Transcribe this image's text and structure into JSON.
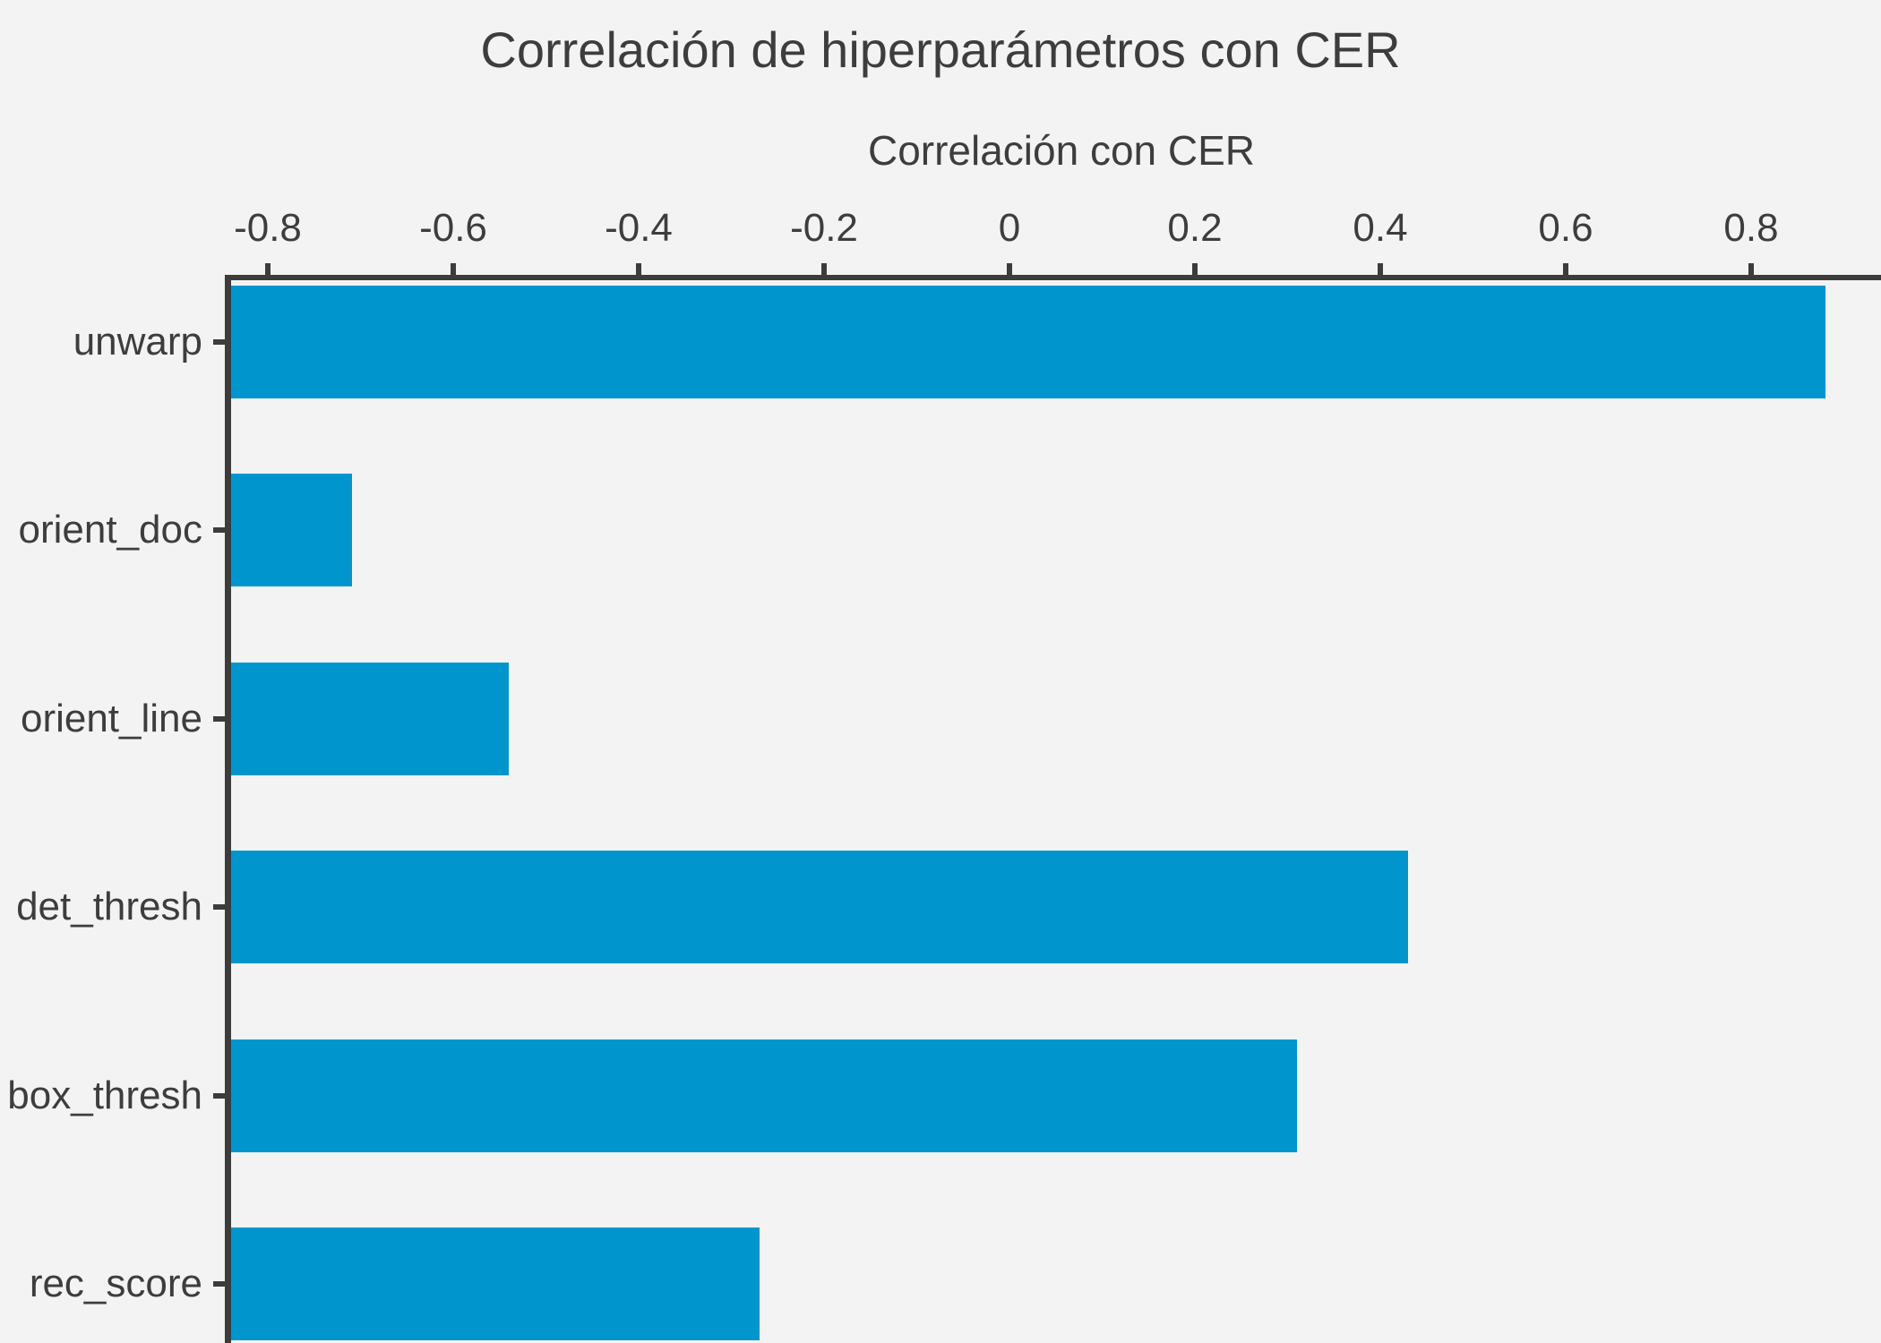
{
  "chart_data": {
    "type": "bar",
    "orientation": "horizontal",
    "title": "Correlación de hiperparámetros con CER",
    "xlabel": "Correlación con CER",
    "ylabel": "",
    "categories": [
      "unwarp",
      "orient_doc",
      "orient_line",
      "det_thresh",
      "box_thresh",
      "rec_score"
    ],
    "values": [
      0.88,
      -0.71,
      -0.54,
      0.43,
      0.31,
      -0.27
    ],
    "x_ticks": [
      -0.8,
      -0.6,
      -0.4,
      -0.2,
      0,
      0.2,
      0.4,
      0.6,
      0.8
    ],
    "x_tick_labels": [
      "-0.8",
      "-0.6",
      "-0.4",
      "-0.2",
      "0",
      "0.2",
      "0.4",
      "0.6",
      "0.8"
    ],
    "xlim": [
      -0.84,
      0.94
    ],
    "bars_start_at": "xmin",
    "grid": false,
    "legend": null,
    "colors": {
      "bar": "#0096cd",
      "background": "#f3f3f3",
      "spine": "#3c3c3c",
      "text": "#3d3d3d"
    }
  }
}
